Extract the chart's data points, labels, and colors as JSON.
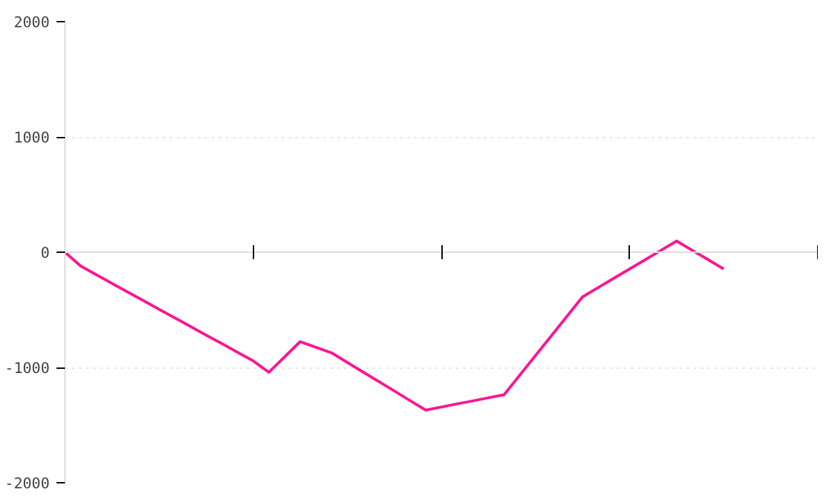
{
  "chart_data": {
    "type": "line",
    "categories": [
      null,
      null,
      null,
      null,
      null,
      null,
      null,
      null,
      null,
      null,
      null,
      null,
      null,
      null,
      null,
      null,
      null,
      null,
      null,
      null,
      null,
      null,
      null,
      null,
      null,
      null,
      null,
      null,
      null,
      null,
      null,
      null,
      null,
      null,
      null,
      null,
      null,
      null,
      null,
      null,
      null,
      null,
      null,
      null,
      null,
      null,
      null,
      null,
      null
    ],
    "series": [
      {
        "color": "#ff1493",
        "values": [
          0,
          -120,
          -196,
          -271,
          -345,
          -420,
          -495,
          -569,
          -644,
          -719,
          -793,
          -868,
          -943,
          -1042,
          -909,
          -776,
          -825,
          -873,
          -956,
          -1039,
          -1121,
          -1204,
          -1287,
          -1370,
          -1343,
          -1316,
          -1290,
          -1263,
          -1236,
          -1066,
          -897,
          -727,
          -558,
          -388,
          -307,
          -226,
          -146,
          -65,
          16,
          97,
          16,
          -64,
          -145,
          null,
          null,
          null,
          null,
          null,
          null
        ]
      }
    ],
    "ylim": [
      -2000,
      2000
    ],
    "yticks": [
      -2000,
      -1000,
      0,
      1000,
      2000
    ],
    "tick_labels": "y",
    "grid": "y",
    "marker": "none",
    "line_style": "solid"
  }
}
